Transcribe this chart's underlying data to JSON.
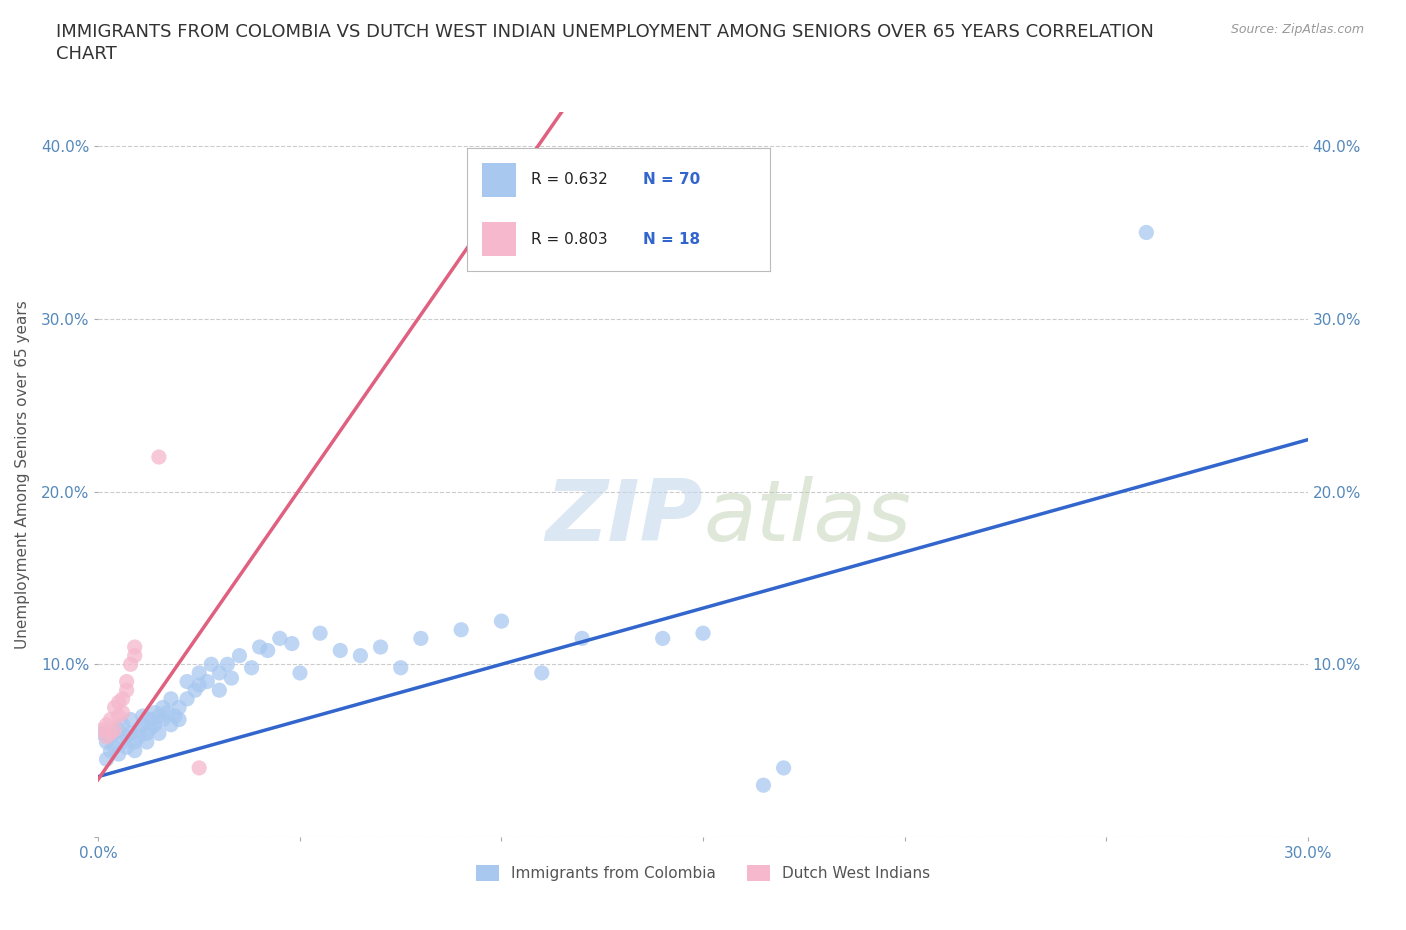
{
  "title": "IMMIGRANTS FROM COLOMBIA VS DUTCH WEST INDIAN UNEMPLOYMENT AMONG SENIORS OVER 65 YEARS CORRELATION\nCHART",
  "source_text": "Source: ZipAtlas.com",
  "ylabel": "Unemployment Among Seniors over 65 years",
  "xlim": [
    0.0,
    0.3
  ],
  "ylim": [
    0.0,
    0.42
  ],
  "x_ticks": [
    0.0,
    0.05,
    0.1,
    0.15,
    0.2,
    0.25,
    0.3
  ],
  "x_tick_labels": [
    "0.0%",
    "",
    "",
    "",
    "",
    "",
    "30.0%"
  ],
  "y_ticks": [
    0.0,
    0.1,
    0.2,
    0.3,
    0.4
  ],
  "y_tick_labels": [
    "",
    "10.0%",
    "20.0%",
    "30.0%",
    "40.0%"
  ],
  "watermark_zip": "ZIP",
  "watermark_atlas": "atlas",
  "legend_r1": "R = 0.632",
  "legend_n1": "N = 70",
  "legend_r2": "R = 0.803",
  "legend_n2": "N = 18",
  "color_colombia": "#a8c8f0",
  "color_dutch": "#f5b8cc",
  "color_line_colombia": "#3366cc",
  "color_line_dutch": "#e06080",
  "colombia_scatter": [
    [
      0.001,
      0.06
    ],
    [
      0.002,
      0.055
    ],
    [
      0.002,
      0.045
    ],
    [
      0.003,
      0.058
    ],
    [
      0.003,
      0.05
    ],
    [
      0.004,
      0.052
    ],
    [
      0.004,
      0.06
    ],
    [
      0.005,
      0.062
    ],
    [
      0.005,
      0.048
    ],
    [
      0.006,
      0.055
    ],
    [
      0.006,
      0.065
    ],
    [
      0.007,
      0.058
    ],
    [
      0.007,
      0.052
    ],
    [
      0.008,
      0.06
    ],
    [
      0.008,
      0.068
    ],
    [
      0.009,
      0.055
    ],
    [
      0.009,
      0.05
    ],
    [
      0.01,
      0.062
    ],
    [
      0.01,
      0.058
    ],
    [
      0.011,
      0.065
    ],
    [
      0.011,
      0.07
    ],
    [
      0.012,
      0.06
    ],
    [
      0.012,
      0.055
    ],
    [
      0.013,
      0.068
    ],
    [
      0.013,
      0.063
    ],
    [
      0.014,
      0.072
    ],
    [
      0.014,
      0.065
    ],
    [
      0.015,
      0.07
    ],
    [
      0.015,
      0.06
    ],
    [
      0.016,
      0.068
    ],
    [
      0.016,
      0.075
    ],
    [
      0.017,
      0.072
    ],
    [
      0.018,
      0.065
    ],
    [
      0.018,
      0.08
    ],
    [
      0.019,
      0.07
    ],
    [
      0.02,
      0.075
    ],
    [
      0.02,
      0.068
    ],
    [
      0.022,
      0.08
    ],
    [
      0.022,
      0.09
    ],
    [
      0.024,
      0.085
    ],
    [
      0.025,
      0.088
    ],
    [
      0.025,
      0.095
    ],
    [
      0.027,
      0.09
    ],
    [
      0.028,
      0.1
    ],
    [
      0.03,
      0.085
    ],
    [
      0.03,
      0.095
    ],
    [
      0.032,
      0.1
    ],
    [
      0.033,
      0.092
    ],
    [
      0.035,
      0.105
    ],
    [
      0.038,
      0.098
    ],
    [
      0.04,
      0.11
    ],
    [
      0.042,
      0.108
    ],
    [
      0.045,
      0.115
    ],
    [
      0.048,
      0.112
    ],
    [
      0.05,
      0.095
    ],
    [
      0.055,
      0.118
    ],
    [
      0.06,
      0.108
    ],
    [
      0.065,
      0.105
    ],
    [
      0.07,
      0.11
    ],
    [
      0.075,
      0.098
    ],
    [
      0.08,
      0.115
    ],
    [
      0.09,
      0.12
    ],
    [
      0.1,
      0.125
    ],
    [
      0.11,
      0.095
    ],
    [
      0.12,
      0.115
    ],
    [
      0.14,
      0.115
    ],
    [
      0.15,
      0.118
    ],
    [
      0.165,
      0.03
    ],
    [
      0.17,
      0.04
    ],
    [
      0.26,
      0.35
    ]
  ],
  "dutch_scatter": [
    [
      0.001,
      0.062
    ],
    [
      0.002,
      0.058
    ],
    [
      0.002,
      0.065
    ],
    [
      0.003,
      0.068
    ],
    [
      0.003,
      0.06
    ],
    [
      0.004,
      0.062
    ],
    [
      0.004,
      0.075
    ],
    [
      0.005,
      0.07
    ],
    [
      0.005,
      0.078
    ],
    [
      0.006,
      0.072
    ],
    [
      0.006,
      0.08
    ],
    [
      0.007,
      0.085
    ],
    [
      0.007,
      0.09
    ],
    [
      0.008,
      0.1
    ],
    [
      0.009,
      0.105
    ],
    [
      0.009,
      0.11
    ],
    [
      0.015,
      0.22
    ],
    [
      0.025,
      0.04
    ]
  ],
  "background_color": "#ffffff",
  "grid_color": "#cccccc",
  "title_fontsize": 13,
  "axis_fontsize": 11,
  "tick_fontsize": 11,
  "legend_label1": "Immigrants from Colombia",
  "legend_label2": "Dutch West Indians"
}
